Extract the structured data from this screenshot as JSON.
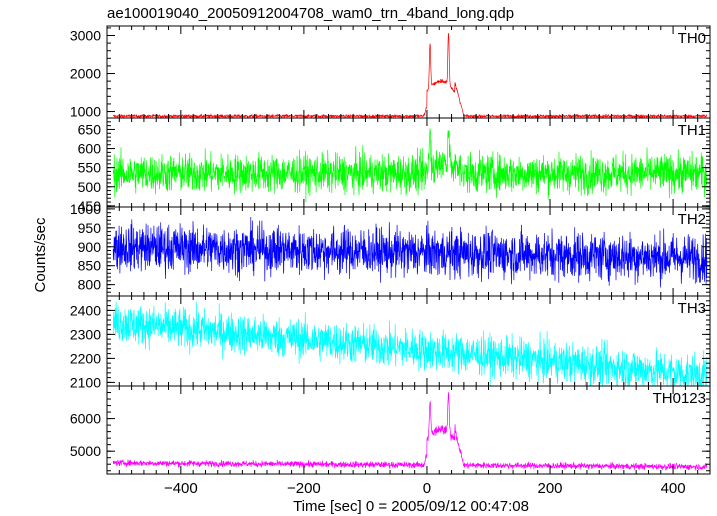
{
  "chart_data": {
    "type": "line",
    "title": "ae100019040_20050912004708_wam0_trn_4band_long.qdp",
    "xlabel": "Time [sec] 0 = 2005/09/12 00:47:08",
    "ylabel": "Counts/sec",
    "xlim": [
      -520,
      460
    ],
    "x_ticks": [
      -400,
      -200,
      0,
      200,
      400
    ],
    "x_tick_labels": [
      "−400",
      "−200",
      "0",
      "200",
      "400"
    ],
    "data_start": -510,
    "data_end": 455,
    "burst_peaks": [
      5,
      35
    ],
    "panels": [
      {
        "name": "TH0",
        "color": "#ff0000",
        "ylim": [
          830,
          3250
        ],
        "y_ticks": [
          1000,
          2000,
          3000
        ],
        "y_tick_labels": [
          "1000",
          "2000",
          "3000"
        ],
        "baseline": 880,
        "noise": 35,
        "trend": 0,
        "burst_shape": "spike-high",
        "burst_peak": 3200,
        "burst_plateau": 1800
      },
      {
        "name": "TH1",
        "color": "#00ff00",
        "ylim": [
          447,
          680
        ],
        "y_ticks": [
          450,
          500,
          550,
          600,
          650
        ],
        "y_tick_labels": [
          "450",
          "500",
          "550",
          "600",
          "650"
        ],
        "baseline": 535,
        "noise": 48,
        "trend": 0,
        "burst_shape": "small",
        "burst_peak": 670,
        "burst_plateau": 560
      },
      {
        "name": "TH2",
        "color": "#0000ff",
        "ylim": [
          770,
          1005
        ],
        "y_ticks": [
          800,
          850,
          900,
          950,
          1000
        ],
        "y_tick_labels": [
          "800",
          "850",
          "900",
          "950",
          "1000"
        ],
        "baseline": 885,
        "noise": 60,
        "trend": -15,
        "burst_shape": "none",
        "burst_peak": 885,
        "burst_plateau": 885
      },
      {
        "name": "TH3",
        "color": "#00ffff",
        "ylim": [
          2085,
          2460
        ],
        "y_ticks": [
          2100,
          2200,
          2300,
          2400
        ],
        "y_tick_labels": [
          "2100",
          "2200",
          "2300",
          "2400"
        ],
        "baseline": 2240,
        "noise": 80,
        "trend": -110,
        "burst_shape": "none",
        "burst_peak": 2240,
        "burst_plateau": 2240
      },
      {
        "name": "TH0123",
        "color": "#ff00ff",
        "ylim": [
          4300,
          7000
        ],
        "y_ticks": [
          5000,
          6000
        ],
        "y_tick_labels": [
          "5000",
          "6000"
        ],
        "baseline": 4580,
        "noise": 90,
        "trend": -60,
        "burst_shape": "spike-high",
        "burst_peak": 6950,
        "burst_plateau": 5700
      }
    ],
    "grid": false,
    "legend": "none"
  }
}
